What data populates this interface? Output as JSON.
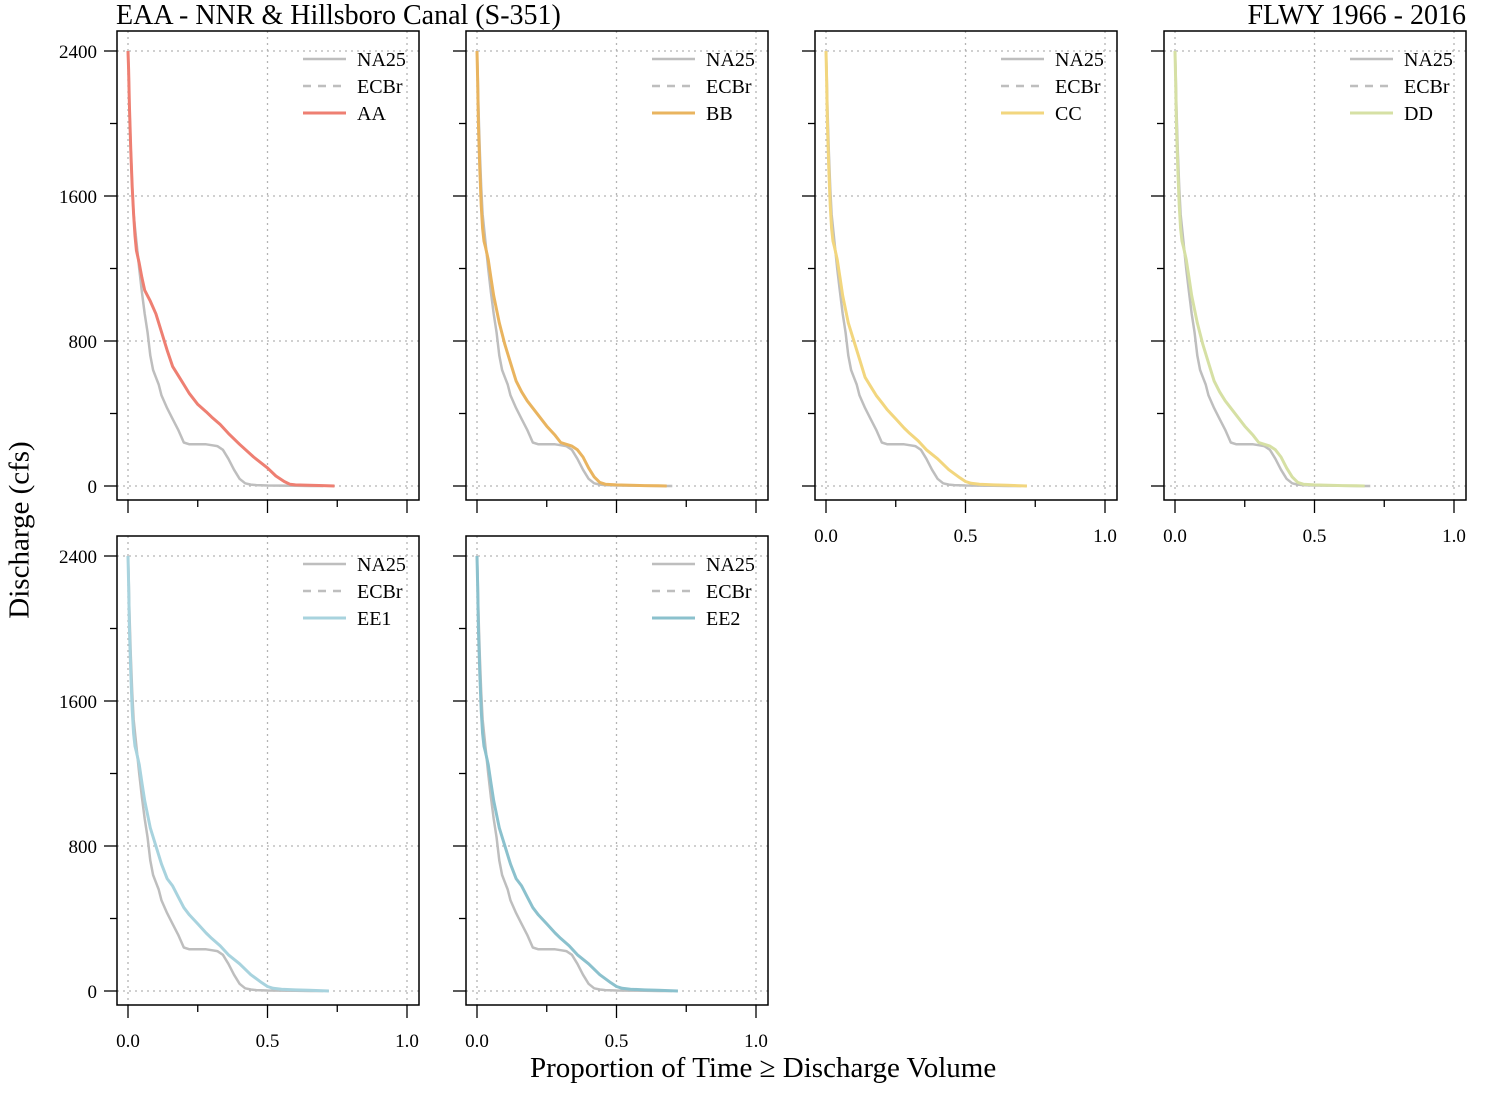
{
  "title_left": "EAA - NNR & Hillsboro Canal (S-351)",
  "title_right": "FLWY 1966 - 2016",
  "xlabel": "Proportion of Time ≥ Discharge Volume",
  "ylabel": "Discharge (cfs)",
  "chart_data": {
    "type": "line",
    "xlim": [
      0,
      1
    ],
    "ylim": [
      0,
      2400
    ],
    "xticks": [
      0,
      0.5,
      1
    ],
    "xtick_labels": [
      "0.0",
      "0.5",
      "1.0"
    ],
    "yticks": [
      0,
      800,
      1600,
      2400
    ],
    "ytick_labels": [
      "0",
      "800",
      "1600",
      "2400"
    ],
    "grid": true,
    "legend_position": "top-right",
    "reference_series": [
      {
        "name": "NA25",
        "color": "#bebebe",
        "dash": "solid",
        "x": [
          0,
          0.002,
          0.005,
          0.01,
          0.015,
          0.02,
          0.03,
          0.04,
          0.05,
          0.06,
          0.07,
          0.08,
          0.09,
          0.1,
          0.11,
          0.12,
          0.14,
          0.16,
          0.18,
          0.2,
          0.22,
          0.24,
          0.26,
          0.28,
          0.3,
          0.32,
          0.34,
          0.36,
          0.38,
          0.4,
          0.42,
          0.44,
          0.46,
          0.5,
          0.55,
          0.6,
          0.65,
          0.7
        ],
        "y": [
          2400,
          2300,
          2100,
          1850,
          1650,
          1500,
          1350,
          1200,
          1070,
          950,
          850,
          720,
          640,
          600,
          560,
          500,
          430,
          370,
          310,
          240,
          230,
          230,
          230,
          230,
          225,
          220,
          200,
          150,
          90,
          40,
          15,
          8,
          5,
          3,
          2,
          1,
          0,
          0
        ]
      },
      {
        "name": "ECBr",
        "color": "#bebebe",
        "dash": "dashed",
        "x": [],
        "y": []
      }
    ],
    "panels": [
      {
        "name": "AA",
        "color": "#ee7f72",
        "x": [
          0,
          0.002,
          0.005,
          0.01,
          0.015,
          0.02,
          0.025,
          0.03,
          0.04,
          0.05,
          0.06,
          0.08,
          0.1,
          0.12,
          0.14,
          0.16,
          0.18,
          0.2,
          0.22,
          0.25,
          0.28,
          0.3,
          0.33,
          0.36,
          0.4,
          0.45,
          0.5,
          0.53,
          0.56,
          0.58,
          0.6,
          0.65,
          0.7,
          0.74
        ],
        "y": [
          2400,
          2300,
          2100,
          1850,
          1650,
          1500,
          1380,
          1300,
          1230,
          1150,
          1080,
          1020,
          950,
          850,
          750,
          660,
          610,
          560,
          510,
          450,
          410,
          380,
          340,
          290,
          230,
          160,
          100,
          55,
          25,
          10,
          6,
          4,
          2,
          0
        ]
      },
      {
        "name": "BB",
        "color": "#e9b45f",
        "x": [
          0,
          0.002,
          0.005,
          0.01,
          0.015,
          0.02,
          0.025,
          0.03,
          0.04,
          0.05,
          0.06,
          0.08,
          0.1,
          0.12,
          0.14,
          0.16,
          0.18,
          0.2,
          0.22,
          0.25,
          0.28,
          0.3,
          0.32,
          0.34,
          0.36,
          0.38,
          0.4,
          0.42,
          0.44,
          0.46,
          0.5,
          0.55,
          0.6,
          0.65,
          0.68
        ],
        "y": [
          2400,
          2250,
          2000,
          1750,
          1550,
          1420,
          1350,
          1320,
          1250,
          1150,
          1050,
          900,
          780,
          680,
          580,
          520,
          470,
          430,
          390,
          330,
          280,
          240,
          230,
          220,
          200,
          160,
          100,
          50,
          20,
          10,
          6,
          4,
          2,
          1,
          0
        ]
      },
      {
        "name": "CC",
        "color": "#f2d67e",
        "x": [
          0,
          0.002,
          0.005,
          0.01,
          0.015,
          0.02,
          0.025,
          0.03,
          0.04,
          0.05,
          0.06,
          0.08,
          0.1,
          0.12,
          0.14,
          0.16,
          0.18,
          0.2,
          0.22,
          0.25,
          0.28,
          0.3,
          0.33,
          0.36,
          0.4,
          0.44,
          0.48,
          0.5,
          0.52,
          0.55,
          0.6,
          0.65,
          0.72
        ],
        "y": [
          2400,
          2250,
          2000,
          1750,
          1550,
          1420,
          1350,
          1320,
          1250,
          1150,
          1050,
          900,
          800,
          700,
          600,
          550,
          500,
          460,
          420,
          370,
          320,
          290,
          250,
          200,
          150,
          90,
          45,
          25,
          15,
          10,
          6,
          4,
          0
        ]
      },
      {
        "name": "DD",
        "color": "#d6e0a4",
        "x": [
          0,
          0.002,
          0.005,
          0.01,
          0.015,
          0.02,
          0.025,
          0.03,
          0.04,
          0.05,
          0.06,
          0.08,
          0.1,
          0.12,
          0.14,
          0.16,
          0.18,
          0.2,
          0.22,
          0.25,
          0.28,
          0.3,
          0.32,
          0.34,
          0.36,
          0.38,
          0.4,
          0.42,
          0.44,
          0.46,
          0.5,
          0.55,
          0.6,
          0.65,
          0.68
        ],
        "y": [
          2400,
          2250,
          2000,
          1750,
          1550,
          1420,
          1350,
          1320,
          1250,
          1150,
          1050,
          900,
          780,
          680,
          580,
          520,
          470,
          430,
          390,
          330,
          280,
          240,
          230,
          220,
          200,
          160,
          100,
          50,
          20,
          10,
          6,
          4,
          2,
          1,
          0
        ]
      },
      {
        "name": "EE1",
        "color": "#a8d3de",
        "x": [
          0,
          0.002,
          0.005,
          0.01,
          0.015,
          0.02,
          0.025,
          0.03,
          0.04,
          0.05,
          0.06,
          0.08,
          0.1,
          0.12,
          0.14,
          0.16,
          0.18,
          0.2,
          0.22,
          0.25,
          0.28,
          0.3,
          0.33,
          0.36,
          0.4,
          0.44,
          0.48,
          0.5,
          0.52,
          0.55,
          0.6,
          0.65,
          0.72
        ],
        "y": [
          2400,
          2250,
          2000,
          1750,
          1550,
          1420,
          1350,
          1320,
          1250,
          1150,
          1050,
          900,
          800,
          700,
          620,
          580,
          520,
          460,
          420,
          370,
          320,
          290,
          250,
          200,
          150,
          90,
          45,
          25,
          15,
          10,
          6,
          4,
          0
        ]
      },
      {
        "name": "EE2",
        "color": "#8bc1cd",
        "x": [
          0,
          0.002,
          0.005,
          0.01,
          0.015,
          0.02,
          0.025,
          0.03,
          0.04,
          0.05,
          0.06,
          0.08,
          0.1,
          0.12,
          0.14,
          0.16,
          0.18,
          0.2,
          0.22,
          0.25,
          0.28,
          0.3,
          0.33,
          0.36,
          0.4,
          0.44,
          0.48,
          0.5,
          0.52,
          0.55,
          0.6,
          0.65,
          0.72
        ],
        "y": [
          2400,
          2250,
          2000,
          1750,
          1550,
          1420,
          1350,
          1320,
          1250,
          1150,
          1050,
          900,
          800,
          700,
          620,
          580,
          520,
          460,
          420,
          370,
          320,
          290,
          250,
          200,
          150,
          90,
          45,
          25,
          15,
          10,
          6,
          4,
          0
        ]
      }
    ]
  }
}
